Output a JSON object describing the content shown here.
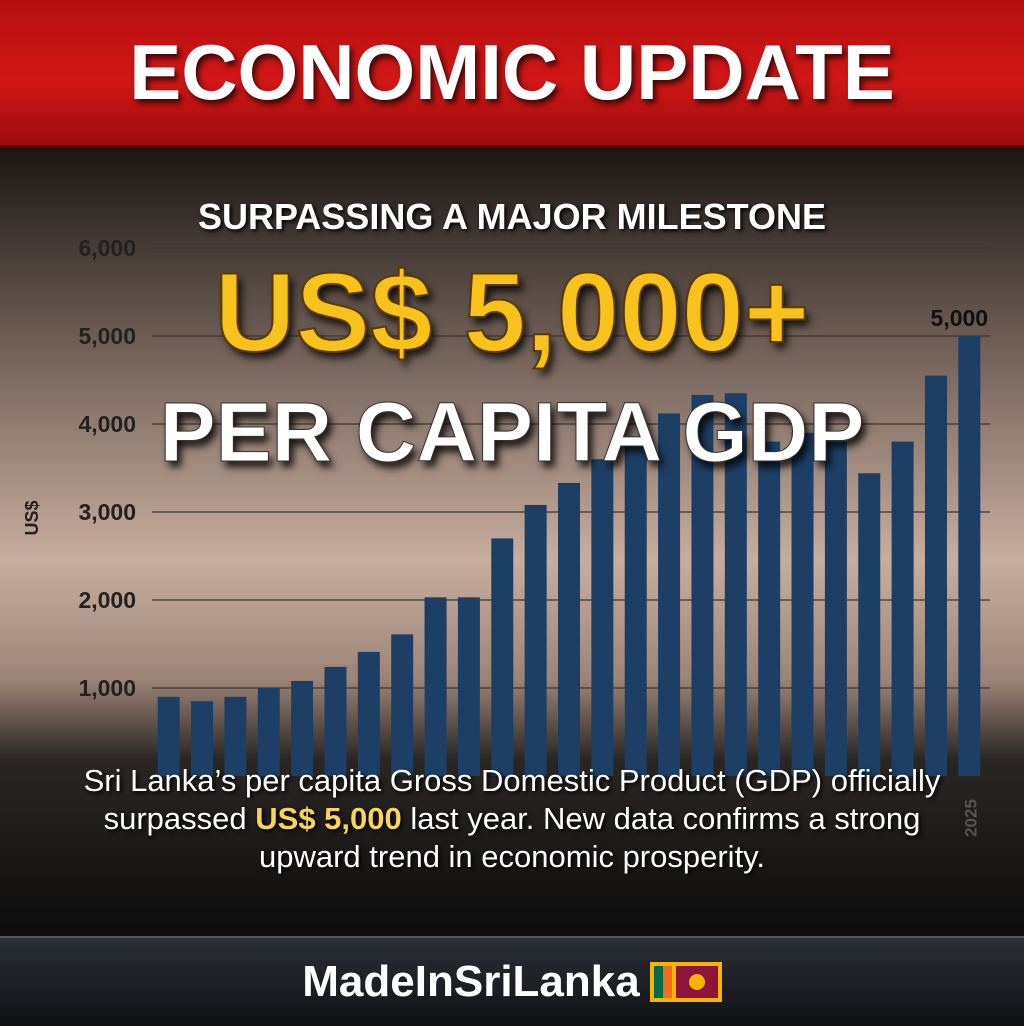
{
  "header": {
    "title": "ECONOMIC UPDATE"
  },
  "headline": {
    "kicker": "SURPASSING A MAJOR MILESTONE",
    "amount": "US$ 5,000+",
    "subject": "PER CAPITA GDP"
  },
  "description": {
    "parts": [
      "Sri Lanka’s per capita  Gross Domestic Product (GDP) officially surpassed ",
      "US$ 5,000",
      " last year. New data confirms a strong upward trend in economic prosperity."
    ]
  },
  "footer": {
    "brand": "MadeInSriLanka"
  },
  "chart_data": {
    "type": "bar",
    "y_label": "US$",
    "categories": [
      null,
      null,
      null,
      null,
      null,
      null,
      null,
      null,
      null,
      null,
      null,
      null,
      null,
      null,
      null,
      null,
      null,
      null,
      null,
      null,
      null,
      null,
      null,
      null,
      "2025"
    ],
    "values": [
      900,
      850,
      900,
      1000,
      1080,
      1240,
      1410,
      1610,
      2030,
      2030,
      2700,
      3080,
      3330,
      3600,
      3800,
      4120,
      4330,
      4350,
      3800,
      3900,
      3800,
      3440,
      3800,
      4550,
      5000
    ],
    "value_labels": [
      null,
      null,
      null,
      null,
      null,
      null,
      null,
      null,
      null,
      null,
      null,
      null,
      null,
      null,
      null,
      null,
      null,
      null,
      null,
      null,
      null,
      null,
      null,
      null,
      "5,000"
    ],
    "color": "#1d3f66",
    "ylim": [
      0,
      6000
    ],
    "yticks": [
      {
        "value": 1000,
        "label": "1,000"
      },
      {
        "value": 2000,
        "label": "2,000"
      },
      {
        "value": 3000,
        "label": "3,000"
      },
      {
        "value": 4000,
        "label": "4,000"
      },
      {
        "value": 5000,
        "label": "5,000"
      },
      {
        "value": 6000,
        "label": "6,000"
      }
    ],
    "grid": true
  }
}
